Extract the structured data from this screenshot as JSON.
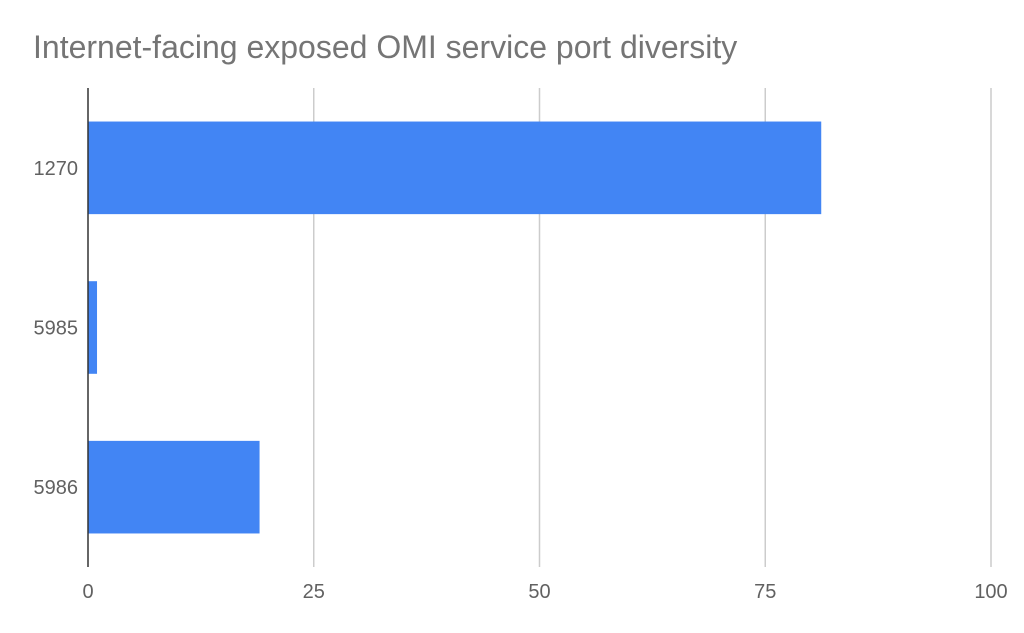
{
  "chart_data": {
    "type": "bar",
    "orientation": "horizontal",
    "title": "Internet-facing exposed OMI service port diversity",
    "xlabel": "",
    "ylabel": "",
    "categories": [
      "1270",
      "5985",
      "5986"
    ],
    "values": [
      81.2,
      1.0,
      19.0
    ],
    "xlim": [
      0,
      100
    ],
    "x_ticks": [
      "0",
      "25",
      "50",
      "75",
      "100"
    ],
    "grid": true,
    "legend": "none",
    "bar_color": "#4285f4"
  }
}
